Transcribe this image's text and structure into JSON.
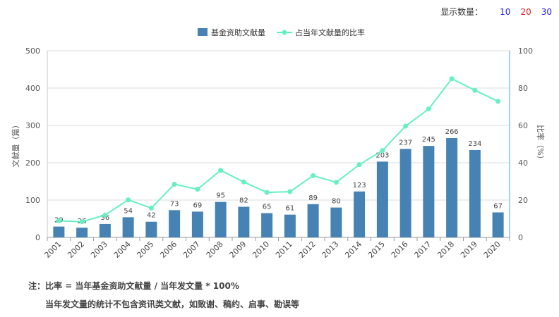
{
  "controls": {
    "label": "显示数量：",
    "options": [
      "10",
      "20",
      "30"
    ]
  },
  "colors": {
    "bar": "#4682b4",
    "line": "#66f0c0",
    "axis_right": "#7ec8e3",
    "grid": "#dcdcdc"
  },
  "chart_data": {
    "type": "bar",
    "categories": [
      "2001",
      "2002",
      "2003",
      "2004",
      "2005",
      "2006",
      "2007",
      "2008",
      "2009",
      "2010",
      "2011",
      "2012",
      "2013",
      "2014",
      "2015",
      "2016",
      "2017",
      "2018",
      "2019",
      "2020"
    ],
    "series": [
      {
        "name": "基金资助文献量",
        "type": "bar",
        "axis": "left",
        "values": [
          29,
          26,
          36,
          54,
          42,
          73,
          69,
          95,
          82,
          65,
          61,
          89,
          80,
          123,
          203,
          237,
          245,
          266,
          234,
          67
        ]
      },
      {
        "name": "占当年文献量的比率",
        "type": "line",
        "axis": "right",
        "values": [
          8.9,
          8.4,
          12.0,
          20.1,
          15.7,
          28.5,
          25.8,
          35.9,
          29.7,
          24.1,
          24.5,
          33.1,
          29.5,
          39.0,
          46.5,
          59.6,
          68.8,
          85.0,
          78.8,
          72.9
        ]
      }
    ],
    "ylabel": "文献量（篇）",
    "ylabel_right": "比率（%）",
    "ylim": [
      0,
      500
    ],
    "yticks": [
      0,
      100,
      200,
      300,
      400,
      500
    ],
    "ylim_right": [
      0,
      100
    ],
    "yticks_right": [
      0,
      20,
      40,
      60,
      80,
      100
    ],
    "legend_position": "top-center",
    "grid": true
  },
  "notes": {
    "line1": "注：比率 = 当年基金资助文献量 / 当年发文量 * 100%",
    "line2": "当年发文量的统计不包含资讯类文献，如致谢、稿约、启事、勘误等"
  }
}
